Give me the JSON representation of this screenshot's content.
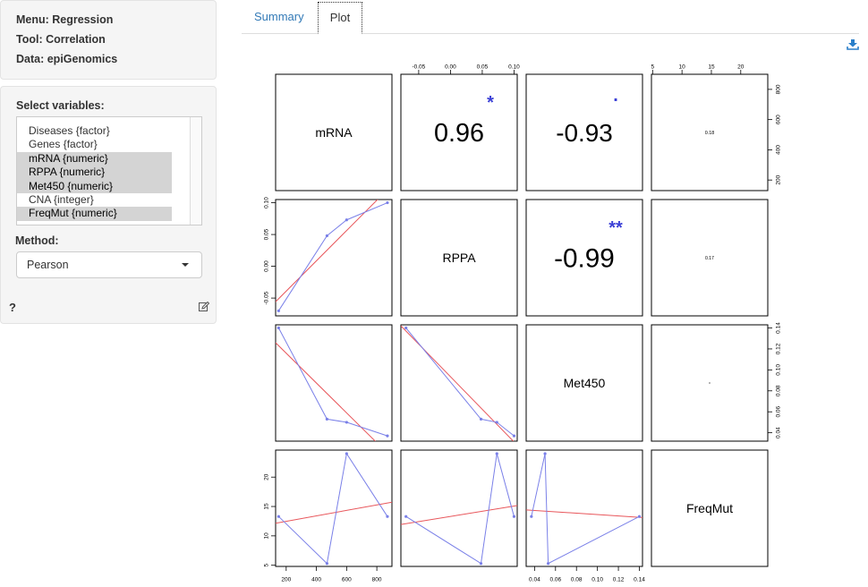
{
  "sidebar": {
    "menu": "Menu: Regression",
    "tool": "Tool: Correlation",
    "data": "Data: epiGenomics",
    "select_label": "Select variables:",
    "variables": [
      {
        "label": "Diseases {factor}",
        "selected": false
      },
      {
        "label": "Genes {factor}",
        "selected": false
      },
      {
        "label": "mRNA {numeric}",
        "selected": true
      },
      {
        "label": "RPPA {numeric}",
        "selected": true
      },
      {
        "label": "Met450 {numeric}",
        "selected": true
      },
      {
        "label": "CNA {integer}",
        "selected": false
      },
      {
        "label": "FreqMut {numeric}",
        "selected": true
      }
    ],
    "method_label": "Method:",
    "method_value": "Pearson",
    "help": "?"
  },
  "tabs": [
    {
      "label": "Summary",
      "active": false
    },
    {
      "label": "Plot",
      "active": true
    }
  ],
  "icons": {
    "download": "download-icon",
    "edit": "edit-icon"
  },
  "colors": {
    "link": "#337ab7",
    "star": "#3a3fd6",
    "fit_line": "#e8565b",
    "data_line": "#7a80e8"
  },
  "chart_data": {
    "type": "scatter-matrix",
    "variables": [
      "mRNA",
      "RPPA",
      "Met450",
      "FreqMut"
    ],
    "data": {
      "mRNA": [
        150,
        470,
        600,
        870
      ],
      "RPPA": [
        -0.07,
        0.048,
        0.073,
        0.1
      ],
      "Met450": [
        0.14,
        0.053,
        0.05,
        0.037
      ],
      "FreqMut": [
        13.3,
        5.3,
        24,
        13.3
      ]
    },
    "correlations": [
      {
        "pair": [
          "mRNA",
          "RPPA"
        ],
        "r": "0.96",
        "stars": "*"
      },
      {
        "pair": [
          "mRNA",
          "Met450"
        ],
        "r": "-0.93",
        "stars": "."
      },
      {
        "pair": [
          "mRNA",
          "FreqMut"
        ],
        "r": "0.18",
        "stars": ""
      },
      {
        "pair": [
          "RPPA",
          "Met450"
        ],
        "r": "-0.99",
        "stars": "**"
      },
      {
        "pair": [
          "RPPA",
          "FreqMut"
        ],
        "r": "0.17",
        "stars": ""
      },
      {
        "pair": [
          "Met450",
          "FreqMut"
        ],
        "r": "0",
        "stars": ""
      }
    ],
    "axes": {
      "mRNA": {
        "lim": [
          130,
          900
        ],
        "ticks": [
          "200",
          "400",
          "600",
          "800"
        ],
        "tickvals": [
          200,
          400,
          600,
          800
        ]
      },
      "RPPA": {
        "lim": [
          -0.078,
          0.105
        ],
        "ticks": [
          "-0.05",
          "0.00",
          "0.05",
          "0.10"
        ],
        "tickvals": [
          -0.05,
          0,
          0.05,
          0.1
        ]
      },
      "Met450": {
        "lim": [
          0.032,
          0.143
        ],
        "ticks": [
          "0.04",
          "0.06",
          "0.08",
          "0.10",
          "0.12",
          "0.14"
        ],
        "tickvals": [
          0.04,
          0.06,
          0.08,
          0.1,
          0.12,
          0.14
        ]
      },
      "FreqMut": {
        "lim": [
          4.8,
          24.6
        ],
        "ticks": [
          "5",
          "10",
          "15",
          "20"
        ],
        "tickvals": [
          5,
          10,
          15,
          20
        ]
      }
    },
    "axis_placement": {
      "top": [
        "RPPA",
        "FreqMut"
      ],
      "right": [
        "mRNA",
        "Met450"
      ],
      "bottom": [
        "mRNA",
        "Met450"
      ],
      "left": [
        "RPPA",
        "FreqMut"
      ]
    }
  }
}
